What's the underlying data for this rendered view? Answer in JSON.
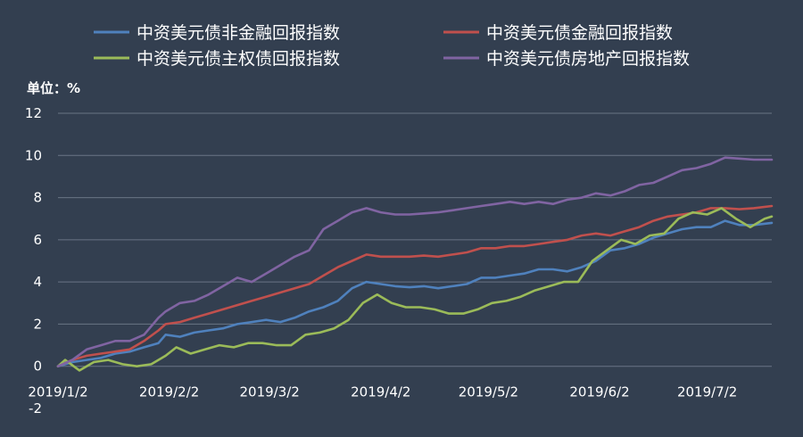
{
  "chart_data": {
    "type": "line",
    "title": "",
    "unit_label": "单位：%",
    "xlabel": "",
    "ylabel": "",
    "ylim": [
      -2,
      12
    ],
    "y_ticks": [
      12,
      10,
      8,
      6,
      4,
      2,
      0,
      -2
    ],
    "x_range": [
      "2019-01-02",
      "2019-07-20"
    ],
    "x_ticks": [
      {
        "date": "2019-01-02",
        "label": "2019/1/2"
      },
      {
        "date": "2019-02-02",
        "label": "2019/2/2"
      },
      {
        "date": "2019-03-02",
        "label": "2019/3/2"
      },
      {
        "date": "2019-04-02",
        "label": "2019/4/2"
      },
      {
        "date": "2019-05-02",
        "label": "2019/5/2"
      },
      {
        "date": "2019-06-02",
        "label": "2019/6/2"
      },
      {
        "date": "2019-07-02",
        "label": "2019/7/2"
      }
    ],
    "grid": true,
    "legend_position": "top",
    "background": "#333f50",
    "series": [
      {
        "name": "中资美元债非金融回报指数",
        "color": "#4f81bd",
        "points": [
          [
            "2019-01-02",
            0.0
          ],
          [
            "2019-01-06",
            0.2
          ],
          [
            "2019-01-10",
            0.3
          ],
          [
            "2019-01-14",
            0.4
          ],
          [
            "2019-01-18",
            0.6
          ],
          [
            "2019-01-22",
            0.7
          ],
          [
            "2019-01-26",
            0.9
          ],
          [
            "2019-01-30",
            1.1
          ],
          [
            "2019-02-01",
            1.5
          ],
          [
            "2019-02-05",
            1.4
          ],
          [
            "2019-02-09",
            1.6
          ],
          [
            "2019-02-13",
            1.7
          ],
          [
            "2019-02-17",
            1.8
          ],
          [
            "2019-02-21",
            2.0
          ],
          [
            "2019-02-25",
            2.1
          ],
          [
            "2019-03-01",
            2.2
          ],
          [
            "2019-03-05",
            2.1
          ],
          [
            "2019-03-09",
            2.3
          ],
          [
            "2019-03-13",
            2.6
          ],
          [
            "2019-03-17",
            2.8
          ],
          [
            "2019-03-21",
            3.1
          ],
          [
            "2019-03-25",
            3.7
          ],
          [
            "2019-03-29",
            4.0
          ],
          [
            "2019-04-02",
            3.9
          ],
          [
            "2019-04-06",
            3.8
          ],
          [
            "2019-04-10",
            3.75
          ],
          [
            "2019-04-14",
            3.8
          ],
          [
            "2019-04-18",
            3.7
          ],
          [
            "2019-04-22",
            3.8
          ],
          [
            "2019-04-26",
            3.9
          ],
          [
            "2019-04-30",
            4.2
          ],
          [
            "2019-05-04",
            4.2
          ],
          [
            "2019-05-08",
            4.3
          ],
          [
            "2019-05-12",
            4.4
          ],
          [
            "2019-05-16",
            4.6
          ],
          [
            "2019-05-20",
            4.6
          ],
          [
            "2019-05-24",
            4.5
          ],
          [
            "2019-05-28",
            4.7
          ],
          [
            "2019-06-01",
            5.0
          ],
          [
            "2019-06-05",
            5.5
          ],
          [
            "2019-06-09",
            5.6
          ],
          [
            "2019-06-13",
            5.8
          ],
          [
            "2019-06-17",
            6.1
          ],
          [
            "2019-06-21",
            6.3
          ],
          [
            "2019-06-25",
            6.5
          ],
          [
            "2019-06-29",
            6.6
          ],
          [
            "2019-07-03",
            6.6
          ],
          [
            "2019-07-07",
            6.9
          ],
          [
            "2019-07-11",
            6.7
          ],
          [
            "2019-07-15",
            6.7
          ],
          [
            "2019-07-20",
            6.8
          ]
        ]
      },
      {
        "name": "中资美元债金融回报指数",
        "color": "#c0504d",
        "points": [
          [
            "2019-01-02",
            0.0
          ],
          [
            "2019-01-06",
            0.3
          ],
          [
            "2019-01-10",
            0.5
          ],
          [
            "2019-01-14",
            0.6
          ],
          [
            "2019-01-18",
            0.7
          ],
          [
            "2019-01-22",
            0.8
          ],
          [
            "2019-01-26",
            1.2
          ],
          [
            "2019-01-30",
            1.7
          ],
          [
            "2019-02-01",
            2.0
          ],
          [
            "2019-02-05",
            2.1
          ],
          [
            "2019-02-09",
            2.3
          ],
          [
            "2019-02-13",
            2.5
          ],
          [
            "2019-02-17",
            2.7
          ],
          [
            "2019-02-21",
            2.9
          ],
          [
            "2019-02-25",
            3.1
          ],
          [
            "2019-03-01",
            3.3
          ],
          [
            "2019-03-05",
            3.5
          ],
          [
            "2019-03-09",
            3.7
          ],
          [
            "2019-03-13",
            3.9
          ],
          [
            "2019-03-17",
            4.3
          ],
          [
            "2019-03-21",
            4.7
          ],
          [
            "2019-03-25",
            5.0
          ],
          [
            "2019-03-29",
            5.3
          ],
          [
            "2019-04-02",
            5.2
          ],
          [
            "2019-04-06",
            5.2
          ],
          [
            "2019-04-10",
            5.2
          ],
          [
            "2019-04-14",
            5.25
          ],
          [
            "2019-04-18",
            5.2
          ],
          [
            "2019-04-22",
            5.3
          ],
          [
            "2019-04-26",
            5.4
          ],
          [
            "2019-04-30",
            5.6
          ],
          [
            "2019-05-04",
            5.6
          ],
          [
            "2019-05-08",
            5.7
          ],
          [
            "2019-05-12",
            5.7
          ],
          [
            "2019-05-16",
            5.8
          ],
          [
            "2019-05-20",
            5.9
          ],
          [
            "2019-05-24",
            6.0
          ],
          [
            "2019-05-28",
            6.2
          ],
          [
            "2019-06-01",
            6.3
          ],
          [
            "2019-06-05",
            6.2
          ],
          [
            "2019-06-09",
            6.4
          ],
          [
            "2019-06-13",
            6.6
          ],
          [
            "2019-06-17",
            6.9
          ],
          [
            "2019-06-21",
            7.1
          ],
          [
            "2019-06-25",
            7.2
          ],
          [
            "2019-06-29",
            7.3
          ],
          [
            "2019-07-03",
            7.5
          ],
          [
            "2019-07-07",
            7.5
          ],
          [
            "2019-07-11",
            7.45
          ],
          [
            "2019-07-15",
            7.5
          ],
          [
            "2019-07-20",
            7.6
          ]
        ]
      },
      {
        "name": "中资美元债主权债回报指数",
        "color": "#9bbb59",
        "points": [
          [
            "2019-01-02",
            0.0
          ],
          [
            "2019-01-04",
            0.3
          ],
          [
            "2019-01-08",
            -0.2
          ],
          [
            "2019-01-12",
            0.2
          ],
          [
            "2019-01-16",
            0.3
          ],
          [
            "2019-01-20",
            0.1
          ],
          [
            "2019-01-24",
            0.0
          ],
          [
            "2019-01-28",
            0.1
          ],
          [
            "2019-02-01",
            0.5
          ],
          [
            "2019-02-04",
            0.9
          ],
          [
            "2019-02-08",
            0.6
          ],
          [
            "2019-02-12",
            0.8
          ],
          [
            "2019-02-16",
            1.0
          ],
          [
            "2019-02-20",
            0.9
          ],
          [
            "2019-02-24",
            1.1
          ],
          [
            "2019-02-28",
            1.1
          ],
          [
            "2019-03-04",
            1.0
          ],
          [
            "2019-03-08",
            1.0
          ],
          [
            "2019-03-12",
            1.5
          ],
          [
            "2019-03-16",
            1.6
          ],
          [
            "2019-03-20",
            1.8
          ],
          [
            "2019-03-24",
            2.2
          ],
          [
            "2019-03-28",
            3.0
          ],
          [
            "2019-04-01",
            3.4
          ],
          [
            "2019-04-05",
            3.0
          ],
          [
            "2019-04-09",
            2.8
          ],
          [
            "2019-04-13",
            2.8
          ],
          [
            "2019-04-17",
            2.7
          ],
          [
            "2019-04-21",
            2.5
          ],
          [
            "2019-04-25",
            2.5
          ],
          [
            "2019-04-29",
            2.7
          ],
          [
            "2019-05-03",
            3.0
          ],
          [
            "2019-05-07",
            3.1
          ],
          [
            "2019-05-11",
            3.3
          ],
          [
            "2019-05-15",
            3.6
          ],
          [
            "2019-05-19",
            3.8
          ],
          [
            "2019-05-23",
            4.0
          ],
          [
            "2019-05-27",
            4.0
          ],
          [
            "2019-05-31",
            5.0
          ],
          [
            "2019-06-04",
            5.5
          ],
          [
            "2019-06-08",
            6.0
          ],
          [
            "2019-06-12",
            5.8
          ],
          [
            "2019-06-16",
            6.2
          ],
          [
            "2019-06-20",
            6.3
          ],
          [
            "2019-06-24",
            7.0
          ],
          [
            "2019-06-28",
            7.3
          ],
          [
            "2019-07-02",
            7.2
          ],
          [
            "2019-07-06",
            7.5
          ],
          [
            "2019-07-10",
            7.0
          ],
          [
            "2019-07-14",
            6.6
          ],
          [
            "2019-07-18",
            7.0
          ],
          [
            "2019-07-20",
            7.1
          ]
        ]
      },
      {
        "name": "中资美元债房地产回报指数",
        "color": "#8064a2",
        "points": [
          [
            "2019-01-02",
            0.0
          ],
          [
            "2019-01-06",
            0.3
          ],
          [
            "2019-01-10",
            0.8
          ],
          [
            "2019-01-14",
            1.0
          ],
          [
            "2019-01-18",
            1.2
          ],
          [
            "2019-01-22",
            1.2
          ],
          [
            "2019-01-26",
            1.5
          ],
          [
            "2019-01-30",
            2.3
          ],
          [
            "2019-02-01",
            2.6
          ],
          [
            "2019-02-05",
            3.0
          ],
          [
            "2019-02-09",
            3.1
          ],
          [
            "2019-02-13",
            3.4
          ],
          [
            "2019-02-17",
            3.8
          ],
          [
            "2019-02-21",
            4.2
          ],
          [
            "2019-02-25",
            4.0
          ],
          [
            "2019-03-01",
            4.4
          ],
          [
            "2019-03-05",
            4.8
          ],
          [
            "2019-03-09",
            5.2
          ],
          [
            "2019-03-13",
            5.5
          ],
          [
            "2019-03-17",
            6.5
          ],
          [
            "2019-03-21",
            6.9
          ],
          [
            "2019-03-25",
            7.3
          ],
          [
            "2019-03-29",
            7.5
          ],
          [
            "2019-04-02",
            7.3
          ],
          [
            "2019-04-06",
            7.2
          ],
          [
            "2019-04-10",
            7.2
          ],
          [
            "2019-04-14",
            7.25
          ],
          [
            "2019-04-18",
            7.3
          ],
          [
            "2019-04-22",
            7.4
          ],
          [
            "2019-04-26",
            7.5
          ],
          [
            "2019-04-30",
            7.6
          ],
          [
            "2019-05-04",
            7.7
          ],
          [
            "2019-05-08",
            7.8
          ],
          [
            "2019-05-12",
            7.7
          ],
          [
            "2019-05-16",
            7.8
          ],
          [
            "2019-05-20",
            7.7
          ],
          [
            "2019-05-24",
            7.9
          ],
          [
            "2019-05-28",
            8.0
          ],
          [
            "2019-06-01",
            8.2
          ],
          [
            "2019-06-05",
            8.1
          ],
          [
            "2019-06-09",
            8.3
          ],
          [
            "2019-06-13",
            8.6
          ],
          [
            "2019-06-17",
            8.7
          ],
          [
            "2019-06-21",
            9.0
          ],
          [
            "2019-06-25",
            9.3
          ],
          [
            "2019-06-29",
            9.4
          ],
          [
            "2019-07-03",
            9.6
          ],
          [
            "2019-07-07",
            9.9
          ],
          [
            "2019-07-11",
            9.85
          ],
          [
            "2019-07-15",
            9.8
          ],
          [
            "2019-07-20",
            9.8
          ]
        ]
      }
    ]
  }
}
